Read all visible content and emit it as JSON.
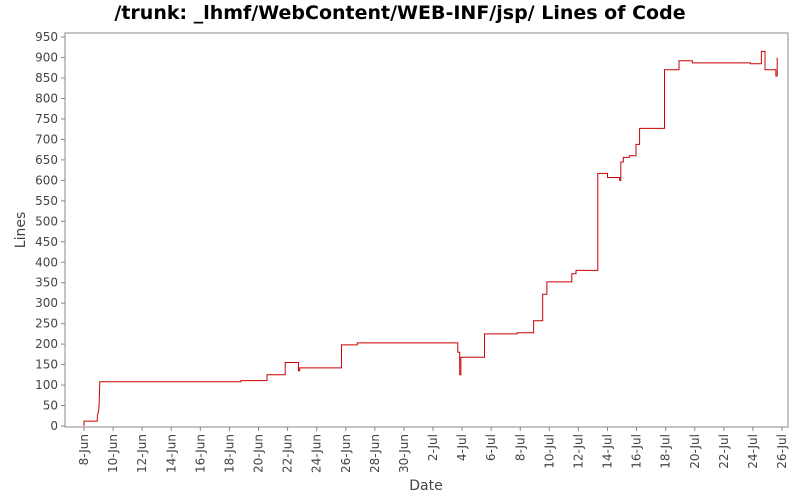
{
  "chart_data": {
    "type": "line",
    "title": "/trunk: _lhmf/WebContent/WEB-INF/jsp/ Lines of Code",
    "xlabel": "Date",
    "ylabel": "Lines",
    "x_unit": "date",
    "xlim": [
      "2011-06-07",
      "2011-07-26"
    ],
    "ylim": [
      0,
      960
    ],
    "y_ticks": [
      0,
      50,
      100,
      150,
      200,
      250,
      300,
      350,
      400,
      450,
      500,
      550,
      600,
      650,
      700,
      750,
      800,
      850,
      900,
      950
    ],
    "x_ticks": [
      {
        "date": "2011-06-08",
        "label": "8-Jun"
      },
      {
        "date": "2011-06-10",
        "label": "10-Jun"
      },
      {
        "date": "2011-06-12",
        "label": "12-Jun"
      },
      {
        "date": "2011-06-14",
        "label": "14-Jun"
      },
      {
        "date": "2011-06-16",
        "label": "16-Jun"
      },
      {
        "date": "2011-06-18",
        "label": "18-Jun"
      },
      {
        "date": "2011-06-20",
        "label": "20-Jun"
      },
      {
        "date": "2011-06-22",
        "label": "22-Jun"
      },
      {
        "date": "2011-06-24",
        "label": "24-Jun"
      },
      {
        "date": "2011-06-26",
        "label": "26-Jun"
      },
      {
        "date": "2011-06-28",
        "label": "28-Jun"
      },
      {
        "date": "2011-06-30",
        "label": "30-Jun"
      },
      {
        "date": "2011-07-02",
        "label": "2-Jul"
      },
      {
        "date": "2011-07-04",
        "label": "4-Jul"
      },
      {
        "date": "2011-07-06",
        "label": "6-Jul"
      },
      {
        "date": "2011-07-08",
        "label": "8-Jul"
      },
      {
        "date": "2011-07-10",
        "label": "10-Jul"
      },
      {
        "date": "2011-07-12",
        "label": "12-Jul"
      },
      {
        "date": "2011-07-14",
        "label": "14-Jul"
      },
      {
        "date": "2011-07-16",
        "label": "16-Jul"
      },
      {
        "date": "2011-07-18",
        "label": "18-Jul"
      },
      {
        "date": "2011-07-20",
        "label": "20-Jul"
      },
      {
        "date": "2011-07-22",
        "label": "22-Jul"
      },
      {
        "date": "2011-07-24",
        "label": "24-Jul"
      },
      {
        "date": "2011-07-26",
        "label": "26-Jul"
      }
    ],
    "grid": false,
    "legend": "none",
    "series": [
      {
        "color": "#cc0000",
        "step": true,
        "points": [
          [
            "2011-06-08T00:00",
            0
          ],
          [
            "2011-06-08T00:00",
            12
          ],
          [
            "2011-06-08T22:00",
            12
          ],
          [
            "2011-06-08T22:00",
            25
          ],
          [
            "2011-06-09T00:00",
            35
          ],
          [
            "2011-06-09T01:00",
            50
          ],
          [
            "2011-06-09T02:00",
            108
          ],
          [
            "2011-06-18T19:00",
            108
          ],
          [
            "2011-06-18T19:00",
            111
          ],
          [
            "2011-06-20T14:00",
            111
          ],
          [
            "2011-06-20T14:00",
            125
          ],
          [
            "2011-06-21T20:00",
            125
          ],
          [
            "2011-06-21T20:00",
            155
          ],
          [
            "2011-06-22T18:00",
            155
          ],
          [
            "2011-06-22T18:00",
            135
          ],
          [
            "2011-06-22T20:00",
            135
          ],
          [
            "2011-06-22T20:00",
            142
          ],
          [
            "2011-06-25T17:00",
            142
          ],
          [
            "2011-06-25T17:00",
            198
          ],
          [
            "2011-06-26T19:00",
            198
          ],
          [
            "2011-06-26T19:00",
            203
          ],
          [
            "2011-07-03T17:00",
            203
          ],
          [
            "2011-07-03T17:00",
            180
          ],
          [
            "2011-07-03T20:00",
            180
          ],
          [
            "2011-07-03T20:00",
            125
          ],
          [
            "2011-07-03T22:00",
            125
          ],
          [
            "2011-07-03T22:00",
            168
          ],
          [
            "2011-07-05T13:00",
            168
          ],
          [
            "2011-07-05T13:00",
            225
          ],
          [
            "2011-07-07T19:00",
            225
          ],
          [
            "2011-07-07T19:00",
            228
          ],
          [
            "2011-07-08T22:00",
            228
          ],
          [
            "2011-07-08T22:00",
            257
          ],
          [
            "2011-07-09T13:00",
            257
          ],
          [
            "2011-07-09T13:00",
            322
          ],
          [
            "2011-07-09T20:00",
            322
          ],
          [
            "2011-07-09T20:00",
            352
          ],
          [
            "2011-07-11T13:00",
            352
          ],
          [
            "2011-07-11T13:00",
            372
          ],
          [
            "2011-07-11T20:00",
            372
          ],
          [
            "2011-07-11T20:00",
            380
          ],
          [
            "2011-07-13T08:00",
            380
          ],
          [
            "2011-07-13T08:00",
            617
          ],
          [
            "2011-07-14T00:00",
            617
          ],
          [
            "2011-07-14T00:00",
            607
          ],
          [
            "2011-07-14T20:00",
            607
          ],
          [
            "2011-07-14T20:00",
            600
          ],
          [
            "2011-07-14T22:00",
            600
          ],
          [
            "2011-07-14T22:00",
            645
          ],
          [
            "2011-07-15T02:00",
            645
          ],
          [
            "2011-07-15T02:00",
            656
          ],
          [
            "2011-07-15T12:00",
            656
          ],
          [
            "2011-07-15T12:00",
            660
          ],
          [
            "2011-07-15T23:00",
            660
          ],
          [
            "2011-07-15T23:00",
            688
          ],
          [
            "2011-07-16T05:00",
            688
          ],
          [
            "2011-07-16T05:00",
            727
          ],
          [
            "2011-07-17T22:00",
            727
          ],
          [
            "2011-07-17T22:00",
            870
          ],
          [
            "2011-07-18T22:00",
            870
          ],
          [
            "2011-07-18T22:00",
            892
          ],
          [
            "2011-07-19T20:00",
            892
          ],
          [
            "2011-07-19T20:00",
            887
          ],
          [
            "2011-07-23T20:00",
            887
          ],
          [
            "2011-07-23T20:00",
            885
          ],
          [
            "2011-07-24T14:00",
            885
          ],
          [
            "2011-07-24T14:00",
            915
          ],
          [
            "2011-07-24T20:00",
            915
          ],
          [
            "2011-07-24T20:00",
            870
          ],
          [
            "2011-07-25T14:00",
            870
          ],
          [
            "2011-07-25T14:00",
            855
          ],
          [
            "2011-07-25T16:00",
            855
          ],
          [
            "2011-07-25T16:00",
            900
          ]
        ]
      }
    ]
  }
}
